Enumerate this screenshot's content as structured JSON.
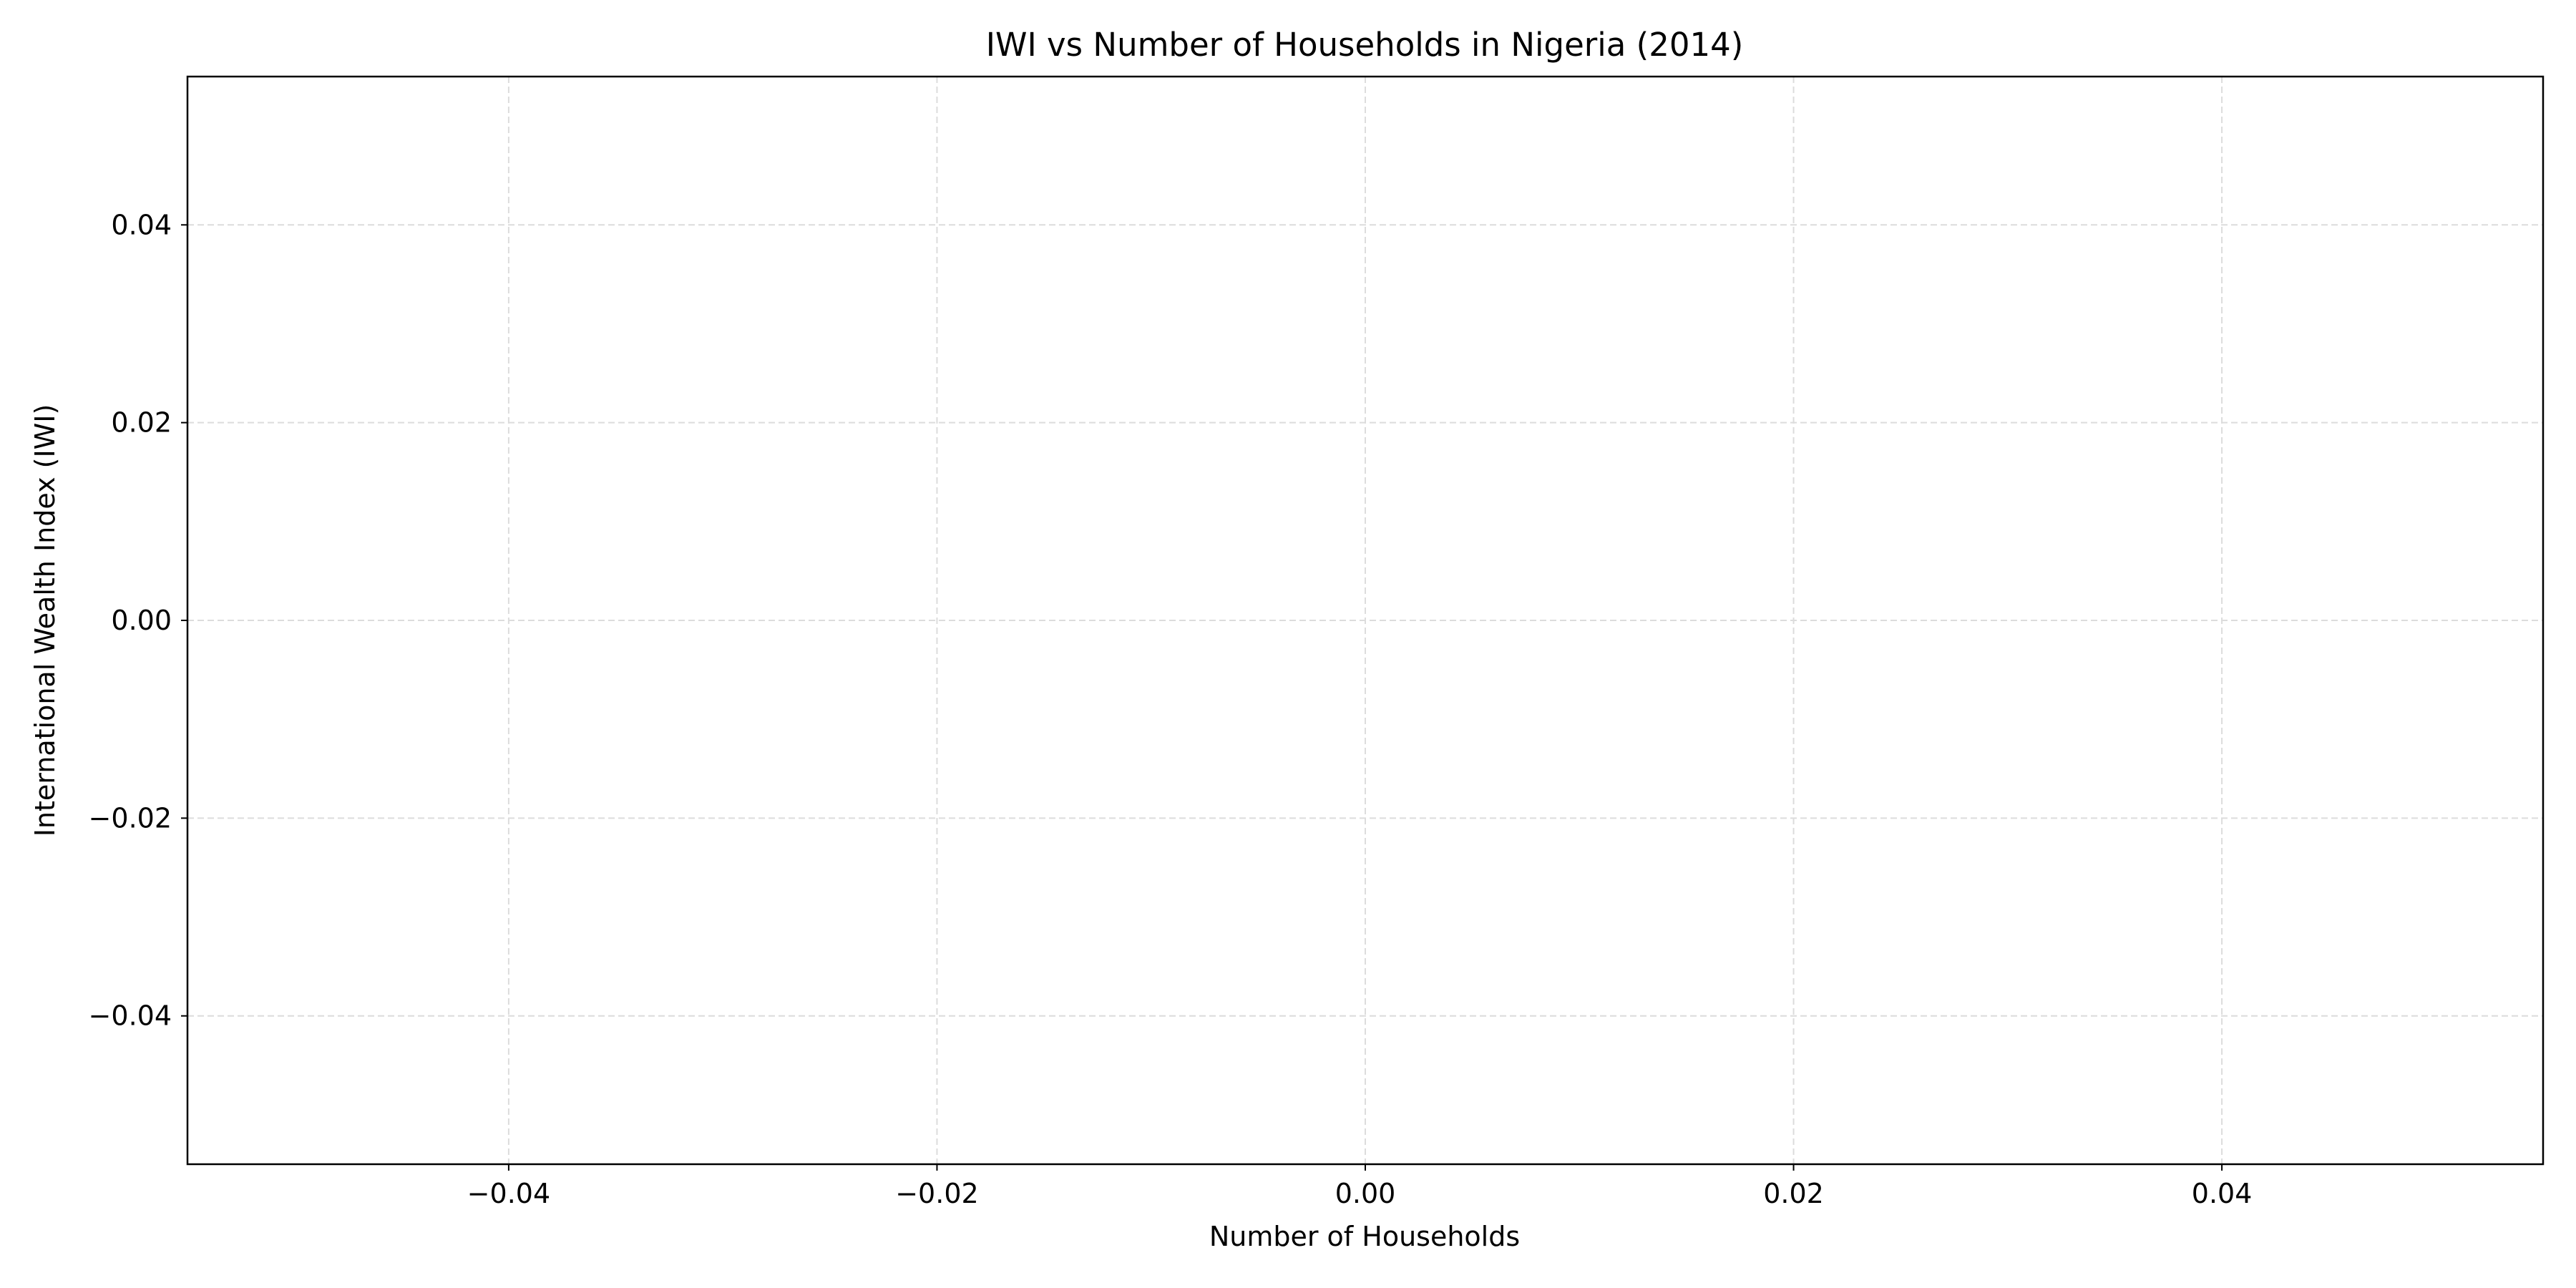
{
  "chart_data": {
    "type": "scatter",
    "title": "IWI vs Number of Households in Nigeria (2014)",
    "xlabel": "Number of Households",
    "ylabel": "International Wealth Index (IWI)",
    "xlim": [
      -0.055,
      0.055
    ],
    "ylim": [
      -0.055,
      0.055
    ],
    "x_ticks": [
      -0.04,
      -0.02,
      0.0,
      0.02,
      0.04
    ],
    "y_ticks": [
      -0.04,
      -0.02,
      0.0,
      0.02,
      0.04
    ],
    "x_tick_labels": [
      "−0.04",
      "−0.02",
      "0.00",
      "0.02",
      "0.04"
    ],
    "y_tick_labels": [
      "−0.04",
      "−0.02",
      "0.00",
      "0.02",
      "0.04"
    ],
    "grid": true,
    "series": [
      {
        "x": [],
        "y": []
      }
    ]
  }
}
